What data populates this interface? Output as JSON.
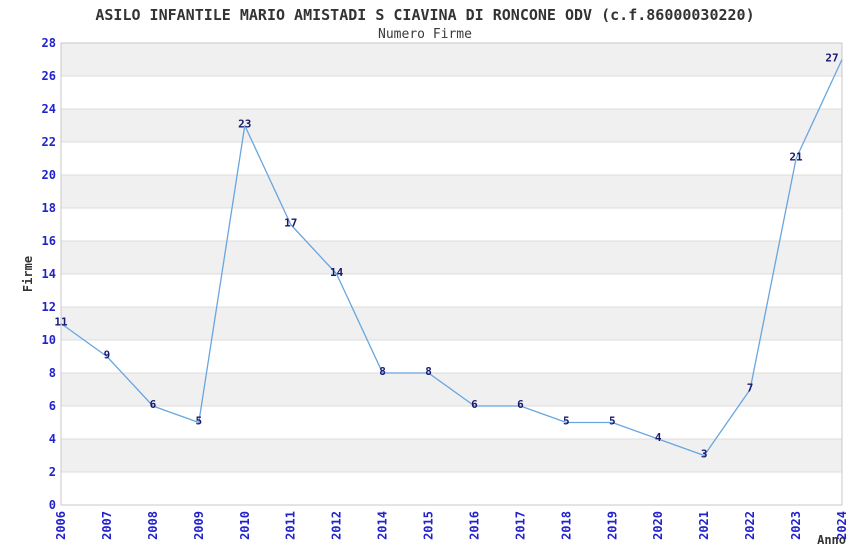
{
  "chart_data": {
    "type": "line",
    "title": "ASILO INFANTILE MARIO AMISTADI S CIAVINA DI RONCONE ODV (c.f.86000030220)",
    "subtitle": "Numero Firme",
    "xlabel": "Anno",
    "ylabel": "Firme",
    "categories": [
      "2006",
      "2007",
      "2008",
      "2009",
      "2010",
      "2011",
      "2012",
      "2014",
      "2015",
      "2016",
      "2017",
      "2018",
      "2019",
      "2020",
      "2021",
      "2022",
      "2023",
      "2024"
    ],
    "values": [
      11,
      9,
      6,
      5,
      23,
      17,
      14,
      8,
      8,
      6,
      6,
      5,
      5,
      4,
      3,
      7,
      21,
      27
    ],
    "ylim": [
      0,
      28
    ],
    "ytick_step": 2,
    "grid": "horizontal-bands-alternating",
    "legend": "none",
    "point_labels_visible": true,
    "colors": {
      "line": "#69a5e0",
      "tick_label": "#2222cc",
      "data_label": "#191970",
      "band": "#f0f0f0",
      "gridline": "#dddddd",
      "border": "#c9c9c9",
      "title": "#333333",
      "axis_title": "#333333",
      "background": "#ffffff"
    }
  }
}
